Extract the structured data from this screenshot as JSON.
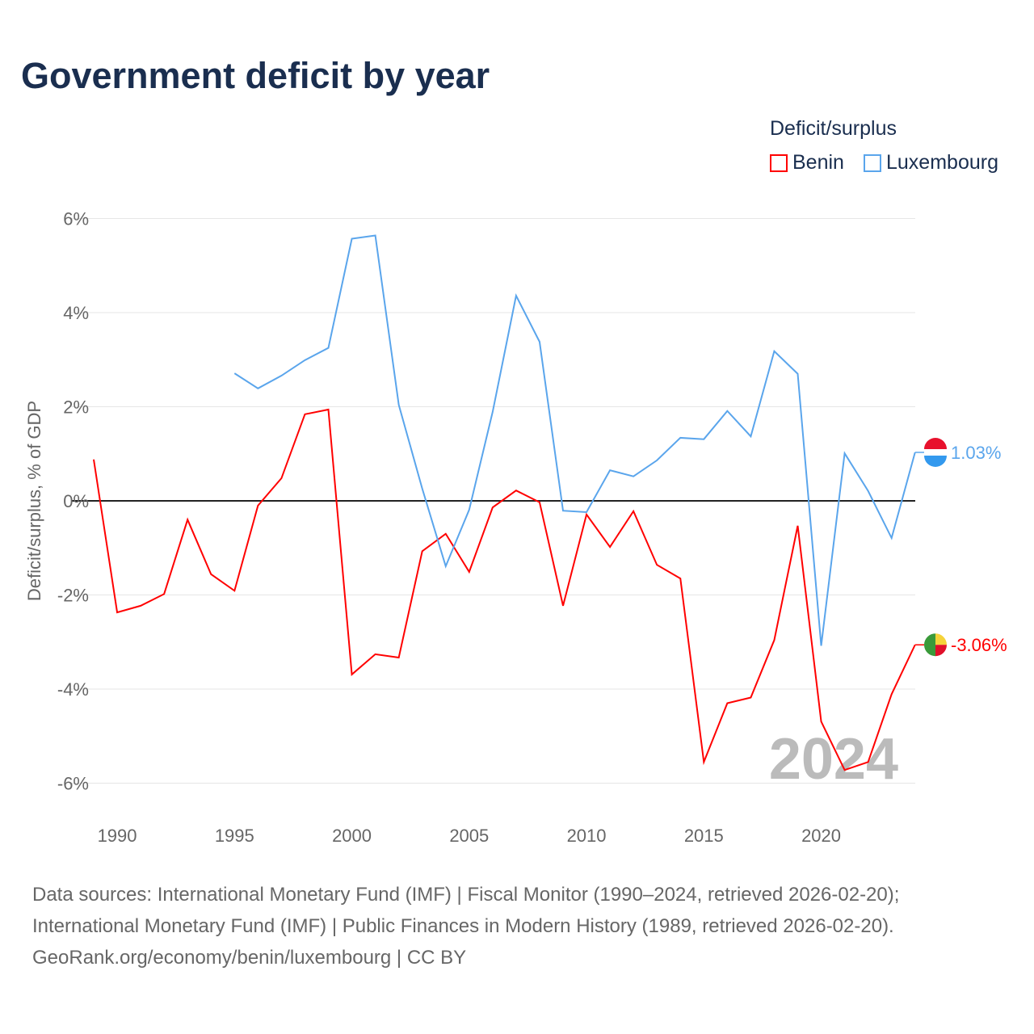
{
  "title": "Government deficit by year",
  "legend": {
    "title": "Deficit/surplus",
    "items": [
      "Benin",
      "Luxembourg"
    ]
  },
  "year_watermark": "2024",
  "sources": [
    "Data sources: International Monetary Fund (IMF) | Fiscal Monitor (1990–2024, retrieved 2026-02-20);",
    "International Monetary Fund (IMF) | Public Finances in Modern History (1989, retrieved 2026-02-20).",
    "GeoRank.org/economy/benin/luxembourg | CC BY"
  ],
  "chart_data": {
    "type": "line",
    "title": "Government deficit by year",
    "xlabel": "",
    "ylabel": "Deficit/surplus, % of GDP",
    "ylim": [
      -6,
      6
    ],
    "xlim": [
      1989,
      2024
    ],
    "yticks": [
      6,
      4,
      2,
      0,
      -2,
      -4,
      -6
    ],
    "ytick_labels": [
      "6%",
      "4%",
      "2%",
      "0%",
      "-2%",
      "-4%",
      "-6%"
    ],
    "xticks": [
      1990,
      1995,
      2000,
      2005,
      2010,
      2015,
      2020
    ],
    "xtick_labels": [
      "1990",
      "1995",
      "2000",
      "2005",
      "2010",
      "2015",
      "2020"
    ],
    "grid": true,
    "legend_position": "top-right",
    "series": [
      {
        "name": "Benin",
        "color": "#ff0000",
        "end_label": "-3.06%",
        "start_year": 1989,
        "values": [
          0.88,
          -2.37,
          -2.23,
          -1.98,
          -0.4,
          -1.56,
          -1.91,
          -0.1,
          0.48,
          1.84,
          1.94,
          -3.69,
          -3.26,
          -3.33,
          -1.07,
          -0.7,
          -1.51,
          -0.14,
          0.22,
          -0.03,
          -2.23,
          -0.29,
          -0.98,
          -0.22,
          -1.36,
          -1.65,
          -5.55,
          -4.3,
          -4.18,
          -2.96,
          -0.53,
          -4.69,
          -5.72,
          -5.55,
          -4.11,
          -3.06
        ]
      },
      {
        "name": "Luxembourg",
        "color": "#5aa5ec",
        "end_label": "1.03%",
        "start_year": 1995,
        "values": [
          2.71,
          2.39,
          2.66,
          2.99,
          3.25,
          5.57,
          5.64,
          2.04,
          0.26,
          -1.39,
          -0.19,
          1.89,
          4.36,
          3.38,
          -0.21,
          -0.24,
          0.65,
          0.52,
          0.86,
          1.34,
          1.31,
          1.91,
          1.37,
          3.18,
          2.7,
          -3.08,
          1.01,
          0.21,
          -0.79,
          1.03
        ]
      }
    ]
  }
}
